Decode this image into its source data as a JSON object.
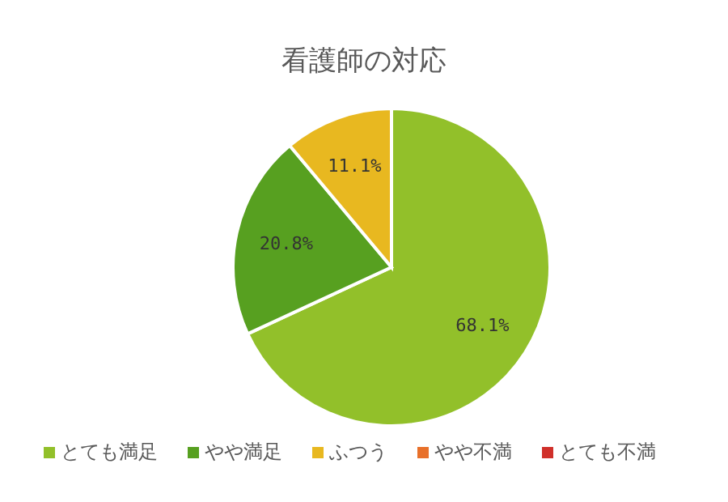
{
  "chart_data": {
    "type": "pie",
    "title": "看護師の対応",
    "categories": [
      "とても満足",
      "やや満足",
      "ふつう",
      "やや不満",
      "とても不満"
    ],
    "values": [
      68.1,
      20.8,
      11.1,
      0,
      0
    ],
    "colors": [
      "#92c02a",
      "#57a020",
      "#e8b820",
      "#e8702a",
      "#d0302a"
    ],
    "value_labels": [
      "68.1%",
      "20.8%",
      "11.1%",
      null,
      null
    ],
    "legend": "bottom"
  }
}
